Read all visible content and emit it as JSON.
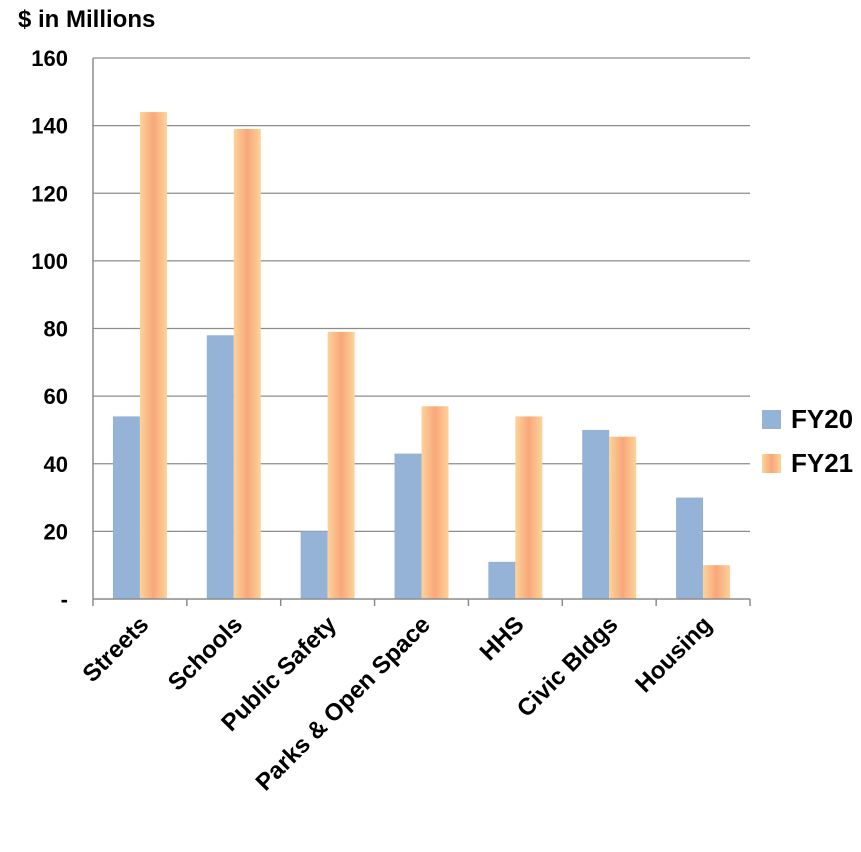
{
  "chart_data": {
    "type": "bar",
    "ylabel": "$ in Millions",
    "categories": [
      "Streets",
      "Schools",
      "Public Safety",
      "Parks & Open Space",
      "HHS",
      "Civic Bldgs",
      "Housing"
    ],
    "series": [
      {
        "name": "FY20",
        "values": [
          54,
          78,
          20,
          43,
          11,
          50,
          30
        ],
        "color": "#95b3d7"
      },
      {
        "name": "FY21",
        "values": [
          144,
          139,
          79,
          57,
          54,
          48,
          10
        ],
        "color": "#fab474"
      }
    ],
    "ylim": [
      0,
      160
    ],
    "yticks": [
      {
        "value": 0,
        "label": "-"
      },
      {
        "value": 20,
        "label": "20"
      },
      {
        "value": 40,
        "label": "40"
      },
      {
        "value": 60,
        "label": "60"
      },
      {
        "value": 80,
        "label": "80"
      },
      {
        "value": 100,
        "label": "100"
      },
      {
        "value": 120,
        "label": "120"
      },
      {
        "value": 140,
        "label": "140"
      },
      {
        "value": 160,
        "label": "160"
      }
    ],
    "grid": true,
    "legend_position": "right"
  }
}
